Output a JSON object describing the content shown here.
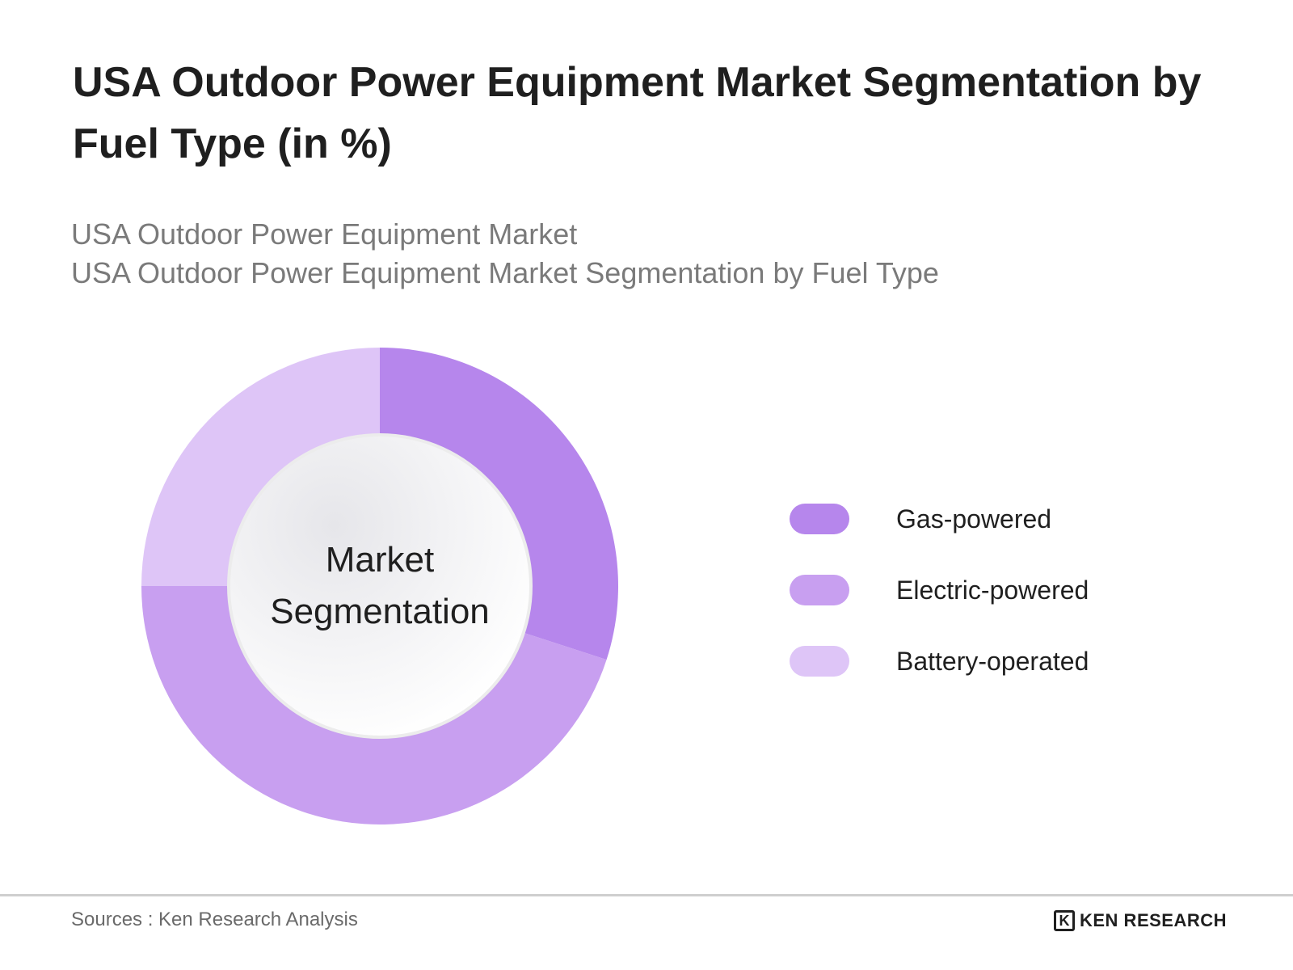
{
  "title": "USA Outdoor Power Equipment Market Segmentation by Fuel Type (in %)",
  "subtitle_lines": [
    "USA Outdoor Power Equipment Market",
    "USA Outdoor Power Equipment Market Segmentation by Fuel Type"
  ],
  "footer": {
    "source": "Sources : Ken Research Analysis",
    "brand_mark": "K",
    "brand": "KEN RESEARCH"
  },
  "chart_data": {
    "type": "pie",
    "variant": "donut",
    "center_label": [
      "Market",
      "Segmentation"
    ],
    "legend_position": "right",
    "categories": [
      "Gas-powered",
      "Electric-powered",
      "Battery-operated"
    ],
    "values": [
      30,
      45,
      25
    ],
    "colors": [
      "#b686ec",
      "#c89ff0",
      "#dec5f7"
    ]
  }
}
